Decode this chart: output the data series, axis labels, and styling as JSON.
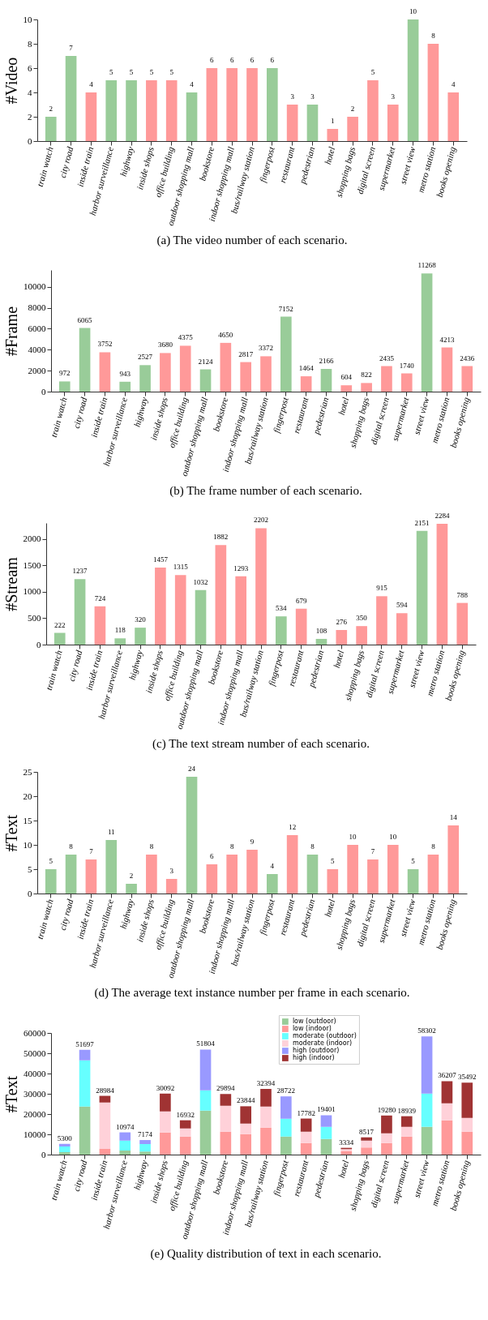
{
  "chart_data": [
    {
      "type": "bar",
      "title": "(a) The video number of each scenario.",
      "ylabel": "#Video",
      "categories": [
        "train watch",
        "city road",
        "inside train",
        "harbor surveillance",
        "highway",
        "inside shops",
        "office building",
        "outdoor shopping mall",
        "bookstore",
        "indoor shopping mall",
        "bus/railway station",
        "fingerpost",
        "restaurant",
        "pedestrian",
        "hotel",
        "shopping bags",
        "digital screen",
        "supermarket",
        "street view",
        "metro station",
        "books opening"
      ],
      "values": [
        2,
        7,
        4,
        5,
        5,
        5,
        5,
        4,
        6,
        6,
        6,
        6,
        3,
        3,
        1,
        2,
        5,
        3,
        10,
        8,
        4
      ],
      "colors": [
        "#99cc99",
        "#99cc99",
        "#ff9999",
        "#99cc99",
        "#99cc99",
        "#ff9999",
        "#ff9999",
        "#99cc99",
        "#ff9999",
        "#ff9999",
        "#ff9999",
        "#99cc99",
        "#ff9999",
        "#99cc99",
        "#ff9999",
        "#ff9999",
        "#ff9999",
        "#ff9999",
        "#99cc99",
        "#ff9999",
        "#ff9999"
      ],
      "ylim": [
        0,
        10
      ],
      "yticks": [
        0,
        2,
        4,
        6,
        8,
        10
      ],
      "data_labels": true
    },
    {
      "type": "bar",
      "title": "(b) The frame number of each scenario.",
      "ylabel": "#Frame",
      "categories": [
        "train watch",
        "city road",
        "inside train",
        "harbor surveillance",
        "highway",
        "inside shops",
        "office building",
        "outdoor shopping mall",
        "bookstore",
        "indoor shopping mall",
        "bus/railway station",
        "fingerpost",
        "restaurant",
        "pedestrian",
        "hotel",
        "shopping bags",
        "digital screen",
        "supermarket",
        "street view",
        "metro station",
        "books opening"
      ],
      "values": [
        972,
        6065,
        3752,
        943,
        2527,
        3680,
        4375,
        2124,
        4650,
        2817,
        3372,
        7152,
        1464,
        2166,
        604,
        822,
        2435,
        1740,
        11268,
        4213,
        2436
      ],
      "colors": [
        "#99cc99",
        "#99cc99",
        "#ff9999",
        "#99cc99",
        "#99cc99",
        "#ff9999",
        "#ff9999",
        "#99cc99",
        "#ff9999",
        "#ff9999",
        "#ff9999",
        "#99cc99",
        "#ff9999",
        "#99cc99",
        "#ff9999",
        "#ff9999",
        "#ff9999",
        "#ff9999",
        "#99cc99",
        "#ff9999",
        "#ff9999"
      ],
      "ylim": [
        0,
        11600
      ],
      "yticks": [
        0,
        2000,
        4000,
        6000,
        8000,
        10000
      ],
      "data_labels": true
    },
    {
      "type": "bar",
      "title": "(c) The text stream number of each scenario.",
      "ylabel": "#Stream",
      "categories": [
        "train watch",
        "city road",
        "inside train",
        "harbor surveillance",
        "highway",
        "inside shops",
        "office building",
        "outdoor shopping mall",
        "bookstore",
        "indoor shopping mall",
        "bus/railway station",
        "fingerpost",
        "restaurant",
        "pedestrian",
        "hotel",
        "shopping bags",
        "digital screen",
        "supermarket",
        "street view",
        "metro station",
        "books opening"
      ],
      "values": [
        222,
        1237,
        724,
        118,
        320,
        1457,
        1315,
        1032,
        1882,
        1293,
        2202,
        534,
        679,
        108,
        276,
        350,
        915,
        594,
        2151,
        2284,
        788
      ],
      "colors": [
        "#99cc99",
        "#99cc99",
        "#ff9999",
        "#99cc99",
        "#99cc99",
        "#ff9999",
        "#ff9999",
        "#99cc99",
        "#ff9999",
        "#ff9999",
        "#ff9999",
        "#99cc99",
        "#ff9999",
        "#99cc99",
        "#ff9999",
        "#ff9999",
        "#ff9999",
        "#ff9999",
        "#99cc99",
        "#ff9999",
        "#ff9999"
      ],
      "ylim": [
        0,
        2300
      ],
      "yticks": [
        0,
        500,
        1000,
        1500,
        2000
      ],
      "data_labels": true
    },
    {
      "type": "bar",
      "title": "(d) The average text instance number per frame in each scenario.",
      "ylabel": "#Text",
      "categories": [
        "train watch",
        "city road",
        "inside train",
        "harbor surveillance",
        "highway",
        "inside shops",
        "office building",
        "outdoor shopping mall",
        "bookstore",
        "indoor shopping mall",
        "bus/railway station",
        "fingerpost",
        "restaurant",
        "pedestrian",
        "hotel",
        "shopping bags",
        "digital screen",
        "supermarket",
        "street view",
        "metro station",
        "books opening"
      ],
      "values": [
        5,
        8,
        7,
        11,
        2,
        8,
        3,
        24,
        6,
        8,
        9,
        4,
        12,
        8,
        5,
        10,
        7,
        10,
        5,
        8,
        14
      ],
      "colors": [
        "#99cc99",
        "#99cc99",
        "#ff9999",
        "#99cc99",
        "#99cc99",
        "#ff9999",
        "#ff9999",
        "#99cc99",
        "#ff9999",
        "#ff9999",
        "#ff9999",
        "#99cc99",
        "#ff9999",
        "#99cc99",
        "#ff9999",
        "#ff9999",
        "#ff9999",
        "#ff9999",
        "#99cc99",
        "#ff9999",
        "#ff9999"
      ],
      "ylim": [
        0,
        25
      ],
      "yticks": [
        0,
        5,
        10,
        15,
        20,
        25
      ],
      "data_labels": true
    },
    {
      "type": "bar",
      "stacked": true,
      "title": "(e) Quality distribution of text in each scenario.",
      "ylabel": "#Text",
      "categories": [
        "train watch",
        "city road",
        "inside train",
        "harbor surveillance",
        "highway",
        "inside shops",
        "office building",
        "outdoor shopping mall",
        "bookstore",
        "indoor shopping mall",
        "bus/railway station",
        "fingerpost",
        "restaurant",
        "pedestrian",
        "hotel",
        "shopping bags",
        "digital screen",
        "supermarket",
        "street view",
        "metro station",
        "books opening"
      ],
      "ylim": [
        0,
        60000
      ],
      "yticks": [
        0,
        10000,
        20000,
        30000,
        40000,
        50000,
        60000
      ],
      "legend": "top",
      "totals": [
        "5300",
        "51697",
        "28984",
        "10974",
        "7174",
        "30092",
        "16932",
        "51804",
        "29894",
        "23844",
        "32394",
        "28722",
        "17782",
        "19401",
        "3334",
        "8517",
        "19280",
        "18939",
        "58302",
        "36207",
        "35492"
      ],
      "series": [
        {
          "name": "low (outdoor)",
          "color": "#99cc99",
          "values": [
            1200,
            23700,
            null,
            2000,
            1500,
            null,
            null,
            21700,
            null,
            null,
            null,
            8900,
            null,
            7700,
            null,
            null,
            null,
            null,
            13700,
            null,
            null
          ]
        },
        {
          "name": "low (indoor)",
          "color": "#ff9999",
          "values": [
            null,
            null,
            2800,
            null,
            null,
            10900,
            8900,
            null,
            11300,
            10100,
            13300,
            null,
            5700,
            null,
            1800,
            3500,
            5700,
            8900,
            null,
            16900,
            11300
          ]
        },
        {
          "name": "moderate (outdoor)",
          "color": "#66ffff",
          "values": [
            2800,
            22800,
            null,
            4900,
            3700,
            null,
            null,
            10000,
            null,
            null,
            null,
            8800,
            null,
            6000,
            null,
            null,
            null,
            null,
            16400,
            null,
            null
          ]
        },
        {
          "name": "moderate (indoor)",
          "color": "#ffd1d9",
          "values": [
            null,
            null,
            22900,
            null,
            null,
            10400,
            4000,
            null,
            12800,
            5200,
            10400,
            null,
            5600,
            null,
            900,
            3400,
            4800,
            4800,
            null,
            8400,
            6800
          ]
        },
        {
          "name": "high (outdoor)",
          "color": "#9999ff",
          "values": [
            1300,
            5197,
            null,
            4074,
            1974,
            null,
            null,
            20104,
            null,
            null,
            null,
            11022,
            null,
            5701,
            null,
            null,
            null,
            null,
            28202,
            null,
            null
          ]
        },
        {
          "name": "high (indoor)",
          "color": "#a03333",
          "values": [
            null,
            null,
            3284,
            null,
            null,
            8792,
            4032,
            null,
            5794,
            8544,
            8694,
            null,
            6482,
            null,
            634,
            1617,
            8780,
            5239,
            null,
            10907,
            17392
          ]
        }
      ]
    }
  ]
}
